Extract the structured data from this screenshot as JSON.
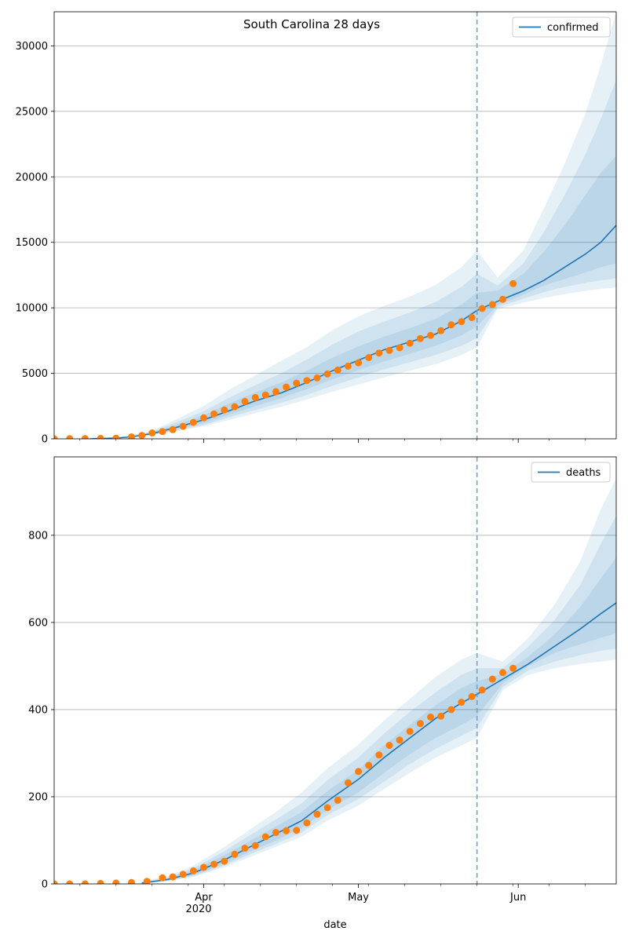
{
  "figure": {
    "title": "South Carolina 28 days",
    "xlabel": "date",
    "year_label": "2020",
    "colors": {
      "model": "#1f77b4",
      "observed": "#ff7f0e",
      "band": "#1f77b4",
      "vline": "#6f9fc2",
      "grid": "#b0b0b0"
    }
  },
  "chart_data": [
    {
      "type": "line",
      "name": "confirmed-panel",
      "legend": "confirmed",
      "legend_position": "top-right",
      "grid": "horizontal",
      "ylim": [
        0,
        32600
      ],
      "yticks": [
        0,
        5000,
        10000,
        15000,
        20000,
        25000,
        30000
      ],
      "xlim": [
        "2020-03-03",
        "2020-06-20"
      ],
      "xticks": [
        {
          "date": "2020-04-01",
          "label": "Apr"
        },
        {
          "date": "2020-05-01",
          "label": "May"
        },
        {
          "date": "2020-06-01",
          "label": "Jun"
        }
      ],
      "forecast_start": "2020-05-24",
      "model": {
        "x": [
          "2020-03-10",
          "2020-03-15",
          "2020-03-18",
          "2020-03-22",
          "2020-03-26",
          "2020-04-01",
          "2020-04-06",
          "2020-04-11",
          "2020-04-16",
          "2020-04-21",
          "2020-04-26",
          "2020-05-01",
          "2020-05-06",
          "2020-05-11",
          "2020-05-16",
          "2020-05-21",
          "2020-05-24",
          "2020-05-28",
          "2020-06-02",
          "2020-06-06",
          "2020-06-10",
          "2020-06-14",
          "2020-06-17",
          "2020-06-20"
        ],
        "y": [
          0,
          60,
          150,
          400,
          800,
          1450,
          2150,
          2900,
          3500,
          4300,
          5200,
          6000,
          6800,
          7400,
          8000,
          9000,
          9800,
          10500,
          11300,
          12100,
          13100,
          14100,
          15000,
          16300
        ]
      },
      "bands": [
        {
          "lower": [
            0,
            40,
            100,
            260,
            520,
            950,
            1450,
            1950,
            2450,
            3000,
            3600,
            4150,
            4700,
            5200,
            5700,
            6400,
            7000,
            9900,
            10400,
            10750,
            11050,
            11300,
            11450,
            11550
          ],
          "upper": [
            10,
            110,
            260,
            650,
            1350,
            2500,
            3750,
            4850,
            5950,
            7000,
            8300,
            9350,
            10150,
            10850,
            11750,
            13100,
            14400,
            12300,
            14400,
            17600,
            21000,
            24800,
            28500,
            32600
          ]
        },
        {
          "lower": [
            0,
            45,
            110,
            290,
            580,
            1050,
            1650,
            2200,
            2750,
            3350,
            4050,
            4700,
            5300,
            5850,
            6400,
            7100,
            7700,
            10050,
            10700,
            11200,
            11600,
            11900,
            12100,
            12250
          ],
          "upper": [
            5,
            95,
            220,
            560,
            1150,
            2100,
            3150,
            4100,
            5000,
            6050,
            7200,
            8200,
            8950,
            9650,
            10450,
            11600,
            12600,
            11700,
            13400,
            15800,
            18600,
            21700,
            24400,
            27400
          ]
        },
        {
          "lower": [
            0,
            50,
            125,
            330,
            660,
            1200,
            1850,
            2500,
            3100,
            3800,
            4550,
            5250,
            5900,
            6500,
            7100,
            7900,
            8600,
            10200,
            11000,
            11700,
            12200,
            12700,
            13100,
            13400
          ],
          "upper": [
            5,
            80,
            190,
            490,
            990,
            1800,
            2700,
            3550,
            4300,
            5200,
            6200,
            7050,
            7800,
            8450,
            9150,
            10250,
            11150,
            11300,
            12600,
            14300,
            16300,
            18600,
            20300,
            21600
          ]
        }
      ],
      "observed": {
        "x": [
          "2020-03-03",
          "2020-03-06",
          "2020-03-09",
          "2020-03-12",
          "2020-03-15",
          "2020-03-18",
          "2020-03-20",
          "2020-03-22",
          "2020-03-24",
          "2020-03-26",
          "2020-03-28",
          "2020-03-30",
          "2020-04-01",
          "2020-04-03",
          "2020-04-05",
          "2020-04-07",
          "2020-04-09",
          "2020-04-11",
          "2020-04-13",
          "2020-04-15",
          "2020-04-17",
          "2020-04-19",
          "2020-04-21",
          "2020-04-23",
          "2020-04-25",
          "2020-04-27",
          "2020-04-29",
          "2020-05-01",
          "2020-05-03",
          "2020-05-05",
          "2020-05-07",
          "2020-05-09",
          "2020-05-11",
          "2020-05-13",
          "2020-05-15",
          "2020-05-17",
          "2020-05-19",
          "2020-05-21",
          "2020-05-23",
          "2020-05-25",
          "2020-05-27",
          "2020-05-29",
          "2020-05-31"
        ],
        "y": [
          0,
          10,
          20,
          30,
          50,
          150,
          260,
          450,
          550,
          700,
          950,
          1250,
          1600,
          1900,
          2200,
          2450,
          2850,
          3150,
          3350,
          3600,
          3950,
          4250,
          4450,
          4650,
          4950,
          5250,
          5550,
          5800,
          6200,
          6550,
          6750,
          6950,
          7300,
          7650,
          7900,
          8250,
          8700,
          8950,
          9250,
          9950,
          10250,
          10650,
          11850
        ]
      }
    },
    {
      "type": "line",
      "name": "deaths-panel",
      "legend": "deaths",
      "legend_position": "top-right",
      "grid": "horizontal",
      "ylim": [
        0,
        980
      ],
      "yticks": [
        0,
        200,
        400,
        600,
        800
      ],
      "xlim": [
        "2020-03-03",
        "2020-06-20"
      ],
      "xticks": [
        {
          "date": "2020-04-01",
          "label": "Apr"
        },
        {
          "date": "2020-05-01",
          "label": "May"
        },
        {
          "date": "2020-06-01",
          "label": "Jun"
        }
      ],
      "forecast_start": "2020-05-24",
      "model": {
        "x": [
          "2020-03-20",
          "2020-03-25",
          "2020-03-30",
          "2020-04-05",
          "2020-04-10",
          "2020-04-15",
          "2020-04-20",
          "2020-04-25",
          "2020-05-01",
          "2020-05-06",
          "2020-05-11",
          "2020-05-16",
          "2020-05-21",
          "2020-05-24",
          "2020-05-29",
          "2020-06-03",
          "2020-06-08",
          "2020-06-13",
          "2020-06-17",
          "2020-06-20"
        ],
        "y": [
          2,
          10,
          25,
          55,
          85,
          115,
          145,
          190,
          240,
          290,
          335,
          380,
          415,
          435,
          470,
          505,
          545,
          585,
          620,
          645
        ]
      },
      "bands": [
        {
          "lower": [
            0,
            6,
            16,
            38,
            62,
            85,
            108,
            145,
            180,
            218,
            255,
            290,
            318,
            335,
            445,
            480,
            495,
            505,
            510,
            515
          ],
          "upper": [
            6,
            18,
            42,
            85,
            125,
            165,
            210,
            265,
            320,
            375,
            425,
            475,
            515,
            530,
            510,
            565,
            640,
            740,
            860,
            930
          ]
        },
        {
          "lower": [
            1,
            7,
            18,
            42,
            68,
            92,
            118,
            158,
            195,
            235,
            275,
            310,
            340,
            358,
            452,
            490,
            510,
            525,
            535,
            540
          ],
          "upper": [
            4,
            15,
            36,
            75,
            112,
            148,
            185,
            238,
            290,
            345,
            395,
            440,
            480,
            495,
            495,
            545,
            605,
            685,
            780,
            845
          ]
        },
        {
          "lower": [
            1,
            8,
            20,
            46,
            74,
            100,
            128,
            170,
            210,
            255,
            298,
            335,
            365,
            385,
            460,
            500,
            530,
            550,
            565,
            575
          ],
          "upper": [
            3,
            13,
            32,
            66,
            99,
            132,
            165,
            213,
            262,
            318,
            365,
            410,
            450,
            465,
            482,
            522,
            572,
            635,
            700,
            750
          ]
        }
      ],
      "observed": {
        "x": [
          "2020-03-03",
          "2020-03-06",
          "2020-03-09",
          "2020-03-12",
          "2020-03-15",
          "2020-03-18",
          "2020-03-21",
          "2020-03-24",
          "2020-03-26",
          "2020-03-28",
          "2020-03-30",
          "2020-04-01",
          "2020-04-03",
          "2020-04-05",
          "2020-04-07",
          "2020-04-09",
          "2020-04-11",
          "2020-04-13",
          "2020-04-15",
          "2020-04-17",
          "2020-04-19",
          "2020-04-21",
          "2020-04-23",
          "2020-04-25",
          "2020-04-27",
          "2020-04-29",
          "2020-05-01",
          "2020-05-03",
          "2020-05-05",
          "2020-05-07",
          "2020-05-09",
          "2020-05-11",
          "2020-05-13",
          "2020-05-15",
          "2020-05-17",
          "2020-05-19",
          "2020-05-21",
          "2020-05-23",
          "2020-05-25",
          "2020-05-27",
          "2020-05-29",
          "2020-05-31"
        ],
        "y": [
          0,
          0,
          0,
          1,
          2,
          3,
          6,
          14,
          16,
          22,
          30,
          38,
          45,
          52,
          68,
          82,
          88,
          108,
          118,
          122,
          123,
          140,
          160,
          175,
          192,
          232,
          258,
          272,
          296,
          318,
          330,
          350,
          368,
          383,
          385,
          400,
          417,
          430,
          445,
          470,
          485,
          495
        ]
      }
    }
  ]
}
